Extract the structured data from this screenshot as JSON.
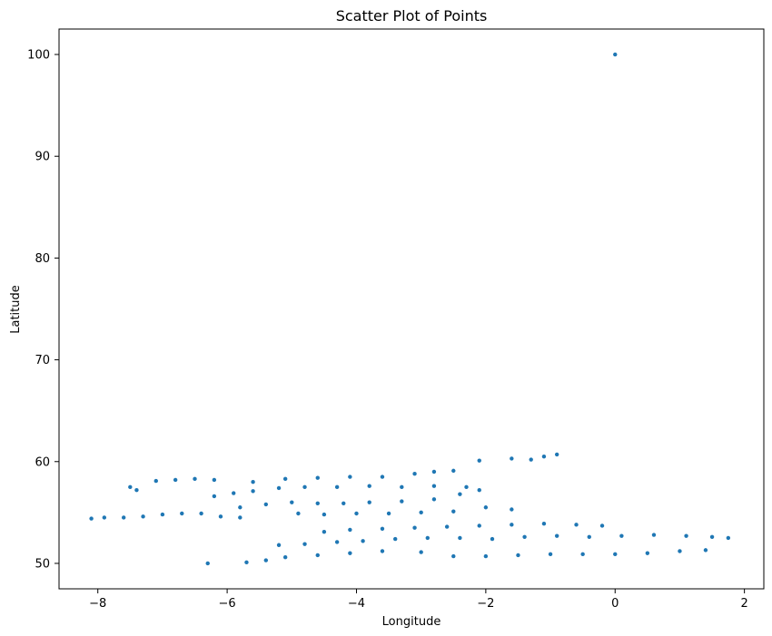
{
  "chart_data": {
    "type": "scatter",
    "title": "Scatter Plot of Points",
    "xlabel": "Longitude",
    "ylabel": "Latitude",
    "xlim": [
      -8.6,
      2.3
    ],
    "ylim": [
      47.5,
      102.5
    ],
    "xticks": [
      -8,
      -6,
      -4,
      -2,
      0,
      2
    ],
    "yticks": [
      50,
      60,
      70,
      80,
      90,
      100
    ],
    "xtick_labels": [
      "−8",
      "−6",
      "−4",
      "−2",
      "0",
      "2"
    ],
    "ytick_labels": [
      "50",
      "60",
      "70",
      "80",
      "90",
      "100"
    ],
    "grid": false,
    "marker_color": "#1f77b4",
    "series": [
      {
        "points_approx": [
          [
            -8.1,
            54.4
          ],
          [
            -7.9,
            54.5
          ],
          [
            -7.6,
            54.5
          ],
          [
            -7.3,
            54.6
          ],
          [
            -7.0,
            54.8
          ],
          [
            -6.7,
            54.9
          ],
          [
            -6.4,
            54.9
          ],
          [
            -6.1,
            54.6
          ],
          [
            -5.8,
            54.5
          ],
          [
            -7.5,
            57.5
          ],
          [
            -7.4,
            57.2
          ],
          [
            -7.1,
            58.1
          ],
          [
            -6.8,
            58.2
          ],
          [
            -6.5,
            58.3
          ],
          [
            -6.2,
            58.2
          ],
          [
            -6.3,
            50.0
          ],
          [
            -5.7,
            50.1
          ],
          [
            -5.4,
            50.3
          ],
          [
            -5.1,
            50.6
          ],
          [
            -4.6,
            50.8
          ],
          [
            -4.1,
            51.0
          ],
          [
            -3.6,
            51.2
          ],
          [
            -3.0,
            51.1
          ],
          [
            -2.5,
            50.7
          ],
          [
            -2.0,
            50.7
          ],
          [
            -1.5,
            50.8
          ],
          [
            -1.0,
            50.9
          ],
          [
            -0.5,
            50.9
          ],
          [
            0.0,
            50.9
          ],
          [
            0.5,
            51.0
          ],
          [
            1.0,
            51.2
          ],
          [
            1.4,
            51.3
          ],
          [
            -5.2,
            51.8
          ],
          [
            -4.8,
            51.9
          ],
          [
            -4.3,
            52.1
          ],
          [
            -3.9,
            52.2
          ],
          [
            -3.4,
            52.4
          ],
          [
            -2.9,
            52.5
          ],
          [
            -2.4,
            52.5
          ],
          [
            -1.9,
            52.4
          ],
          [
            -1.4,
            52.6
          ],
          [
            -0.9,
            52.7
          ],
          [
            -0.4,
            52.6
          ],
          [
            0.1,
            52.7
          ],
          [
            0.6,
            52.8
          ],
          [
            1.1,
            52.7
          ],
          [
            1.5,
            52.6
          ],
          [
            1.75,
            52.5
          ],
          [
            -4.5,
            53.1
          ],
          [
            -4.1,
            53.3
          ],
          [
            -3.6,
            53.4
          ],
          [
            -3.1,
            53.5
          ],
          [
            -2.6,
            53.6
          ],
          [
            -2.1,
            53.7
          ],
          [
            -1.6,
            53.8
          ],
          [
            -1.1,
            53.9
          ],
          [
            -0.6,
            53.8
          ],
          [
            -0.2,
            53.7
          ],
          [
            -4.9,
            54.9
          ],
          [
            -4.5,
            54.8
          ],
          [
            -4.0,
            54.9
          ],
          [
            -3.5,
            54.9
          ],
          [
            -3.0,
            55.0
          ],
          [
            -2.5,
            55.1
          ],
          [
            -2.0,
            55.5
          ],
          [
            -1.6,
            55.3
          ],
          [
            -5.8,
            55.5
          ],
          [
            -5.4,
            55.8
          ],
          [
            -5.0,
            56.0
          ],
          [
            -4.6,
            55.9
          ],
          [
            -4.2,
            55.9
          ],
          [
            -3.8,
            56.0
          ],
          [
            -3.3,
            56.1
          ],
          [
            -2.8,
            56.3
          ],
          [
            -2.4,
            56.8
          ],
          [
            -2.1,
            57.2
          ],
          [
            -6.2,
            56.6
          ],
          [
            -5.9,
            56.9
          ],
          [
            -5.6,
            57.1
          ],
          [
            -5.2,
            57.4
          ],
          [
            -4.8,
            57.5
          ],
          [
            -4.3,
            57.5
          ],
          [
            -3.8,
            57.6
          ],
          [
            -3.3,
            57.5
          ],
          [
            -2.8,
            57.6
          ],
          [
            -2.3,
            57.5
          ],
          [
            -5.6,
            58.0
          ],
          [
            -5.1,
            58.3
          ],
          [
            -4.6,
            58.4
          ],
          [
            -4.1,
            58.5
          ],
          [
            -3.6,
            58.5
          ],
          [
            -3.1,
            58.8
          ],
          [
            -2.8,
            59.0
          ],
          [
            -2.5,
            59.1
          ],
          [
            -1.6,
            60.3
          ],
          [
            -1.3,
            60.2
          ],
          [
            -1.1,
            60.5
          ],
          [
            -0.9,
            60.7
          ],
          [
            -2.1,
            60.1
          ],
          [
            0.0,
            100.0
          ]
        ]
      }
    ]
  }
}
